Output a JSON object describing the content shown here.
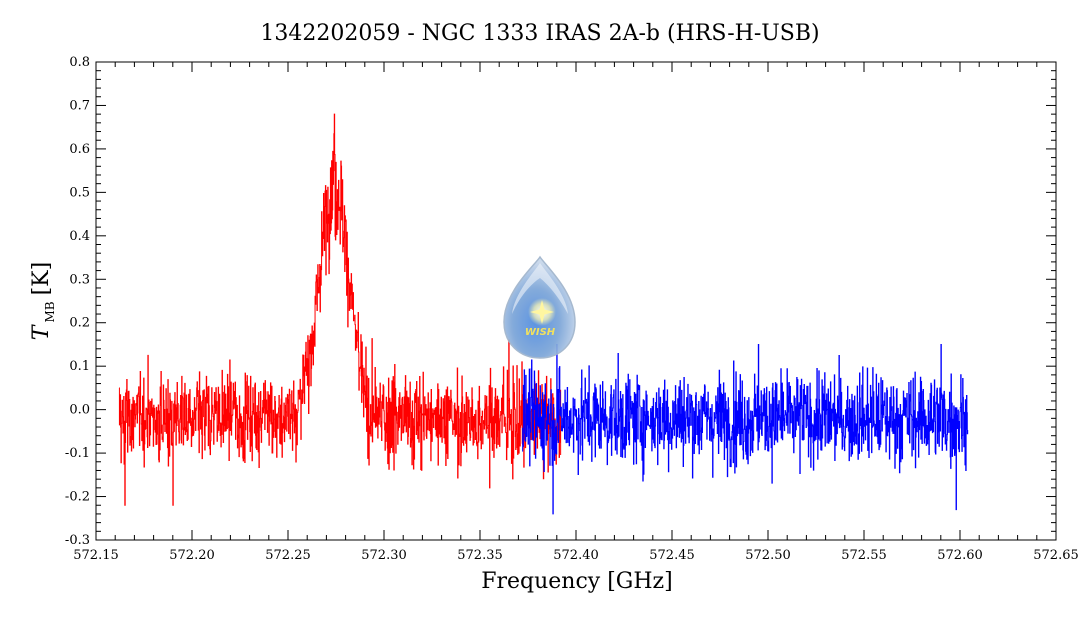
{
  "chart_data": {
    "type": "line",
    "title": "1342202059 - NGC 1333 IRAS 2A-b (HRS-H-USB)",
    "xlabel": "Frequency [GHz]",
    "ylabel_main": "T",
    "ylabel_sub": "MB",
    "ylabel_unit": "[K]",
    "xlim": [
      572.15,
      572.65
    ],
    "ylim": [
      -0.3,
      0.8
    ],
    "xticks": [
      "572.15",
      "572.20",
      "572.25",
      "572.30",
      "572.35",
      "572.40",
      "572.45",
      "572.50",
      "572.55",
      "572.60",
      "572.65"
    ],
    "yticks": [
      "-0.3",
      "-0.2",
      "-0.1",
      "0.0",
      "0.1",
      "0.2",
      "0.3",
      "0.4",
      "0.5",
      "0.6",
      "0.7",
      "0.8"
    ],
    "grid": false,
    "series": [
      {
        "color": "#ff0000",
        "x_range": [
          572.162,
          572.392
        ],
        "baseline": -0.02,
        "noise_rms": 0.07,
        "peak": {
          "center": 572.274,
          "amplitude": 0.55,
          "fwhm": 0.018,
          "max": 0.68
        },
        "extremes": [
          [
            572.165,
            -0.22
          ],
          [
            572.19,
            -0.22
          ],
          [
            572.355,
            -0.18
          ],
          [
            572.365,
            0.16
          ]
        ]
      },
      {
        "color": "#0000ff",
        "x_range": [
          572.372,
          572.604
        ],
        "baseline": -0.02,
        "noise_rms": 0.07,
        "extremes": [
          [
            572.388,
            -0.24
          ],
          [
            572.39,
            0.15
          ],
          [
            572.495,
            0.15
          ],
          [
            572.59,
            0.15
          ],
          [
            572.598,
            -0.23
          ]
        ]
      }
    ]
  },
  "logo": {
    "text": "WISH",
    "colors": {
      "drop": "#8fb0d8",
      "inner": "#5b8fd4",
      "star": "#ffffc0",
      "text": "#f0e060"
    }
  }
}
